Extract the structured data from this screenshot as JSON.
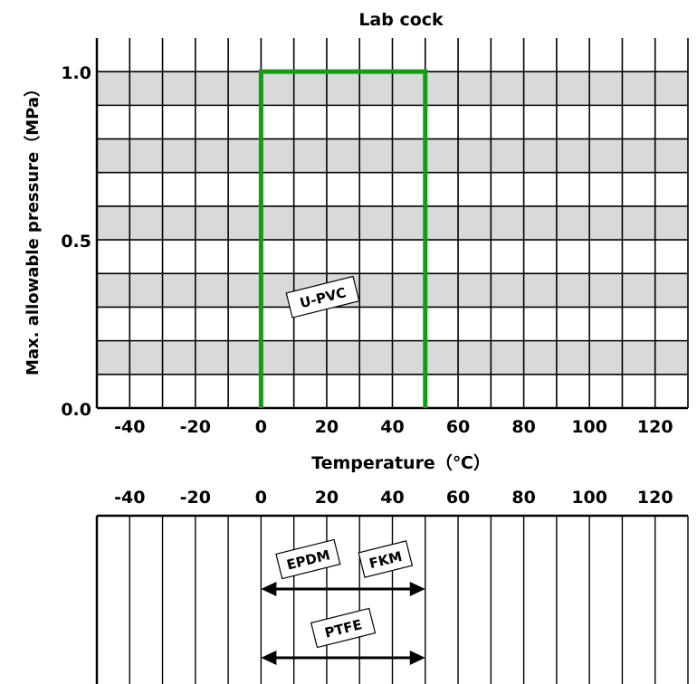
{
  "chart_data": [
    {
      "type": "line",
      "title": "Lab cock",
      "xlabel": "Temperature（℃）",
      "ylabel": "Max. allowable pressure（MPa）",
      "xlim": [
        -50,
        130
      ],
      "ylim": [
        0,
        1.1
      ],
      "x_ticks": [
        -40,
        -20,
        0,
        20,
        40,
        60,
        80,
        100,
        120
      ],
      "y_ticks": [
        0.0,
        0.5,
        1.0
      ],
      "y_tick_labels": [
        "0.0",
        "0.5",
        "1.0"
      ],
      "grid": true,
      "series": [
        {
          "name": "U-PVC",
          "color": "#169b14",
          "points": [
            [
              0,
              0
            ],
            [
              0,
              1.0
            ],
            [
              50,
              1.0
            ],
            [
              50,
              0
            ]
          ]
        }
      ]
    },
    {
      "type": "range",
      "xlim": [
        -50,
        130
      ],
      "x_ticks": [
        -40,
        -20,
        0,
        20,
        40,
        60,
        80,
        100,
        120
      ],
      "grid": true,
      "ranges": [
        {
          "labels": [
            "EPDM",
            "FKM"
          ],
          "from": 0,
          "to": 50
        },
        {
          "labels": [
            "PTFE"
          ],
          "from": 0,
          "to": 50
        }
      ]
    }
  ]
}
